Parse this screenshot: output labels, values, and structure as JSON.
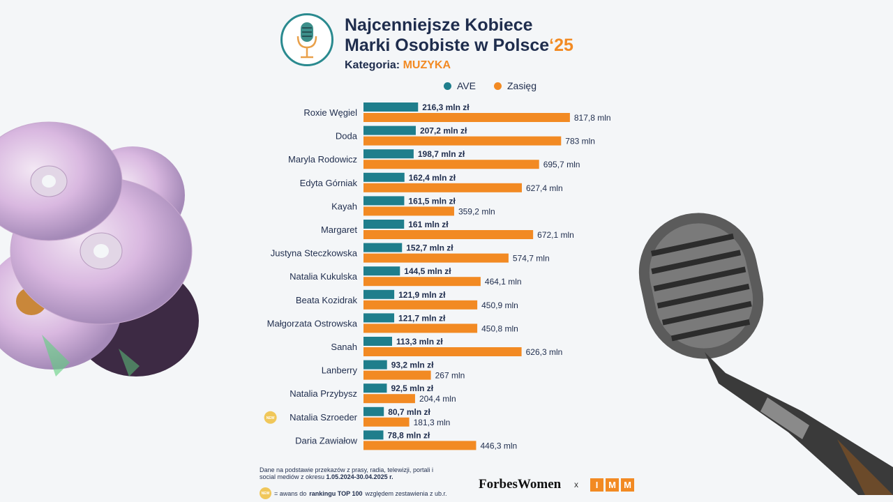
{
  "header": {
    "title_line1": "Najcenniejsze Kobiece",
    "title_line2": "Marki Osobiste w Polsce",
    "title_year": "‘25",
    "category_label": "Kategoria:",
    "category_value": "MUZYKA"
  },
  "colors": {
    "ave": "#1f7e8c",
    "reach": "#f28a23",
    "text": "#1f2d4d"
  },
  "chart_data": {
    "type": "bar",
    "orientation": "horizontal",
    "legend_position": "top",
    "categories": [
      "Roxie Węgiel",
      "Doda",
      "Maryla Rodowicz",
      "Edyta Górniak",
      "Kayah",
      "Margaret",
      "Justyna Steczkowska",
      "Natalia Kukulska",
      "Beata Kozidrak",
      "Małgorzata Ostrowska",
      "Sanah",
      "Lanberry",
      "Natalia Przybysz",
      "Natalia Szroeder",
      "Daria Zawiałow"
    ],
    "series": [
      {
        "name": "AVE",
        "values": [
          216.3,
          207.2,
          198.7,
          162.4,
          161.5,
          161,
          152.7,
          144.5,
          121.9,
          121.7,
          113.3,
          93.2,
          92.5,
          80.7,
          78.8
        ],
        "labels": [
          "216,3 mln zł",
          "207,2 mln zł",
          "198,7 mln zł",
          "162,4 mln zł",
          "161,5 mln zł",
          "161 mln zł",
          "152,7 mln zł",
          "144,5 mln zł",
          "121,9 mln zł",
          "121,7 mln zł",
          "113,3 mln zł",
          "93,2 mln zł",
          "92,5 mln zł",
          "80,7 mln zł",
          "78,8 mln zł"
        ]
      },
      {
        "name": "Zasięg",
        "values": [
          817.8,
          783,
          695.7,
          627.4,
          359.2,
          672.1,
          574.7,
          464.1,
          450.9,
          450.8,
          626.3,
          267,
          204.4,
          181.3,
          446.3
        ],
        "labels": [
          "817,8 mln",
          "783 mln",
          "695,7 mln",
          "627,4 mln",
          "359,2 mln",
          "672,1 mln",
          "574,7 mln",
          "464,1 mln",
          "450,9 mln",
          "450,8 mln",
          "626,3 mln",
          "267 mln",
          "204,4 mln",
          "181,3 mln",
          "446,3 mln"
        ]
      }
    ],
    "new_marker_category": "Natalia Szroeder",
    "new_marker_text": "NEW"
  },
  "footer": {
    "source_text": "Dane na podstawie przekazów z prasy, radia, telewizji, portali i social mediów z okresu ",
    "source_period": "1.05.2024-30.04.2025 r.",
    "new_note_pre": "= awans do ",
    "new_note_bold": "rankingu TOP 100",
    "new_note_post": " względem zestawienia z ub.r.",
    "brand_forbes": "ForbesWomen",
    "brand_separator": "x",
    "brand_imm": [
      "I",
      "M",
      "M"
    ]
  }
}
